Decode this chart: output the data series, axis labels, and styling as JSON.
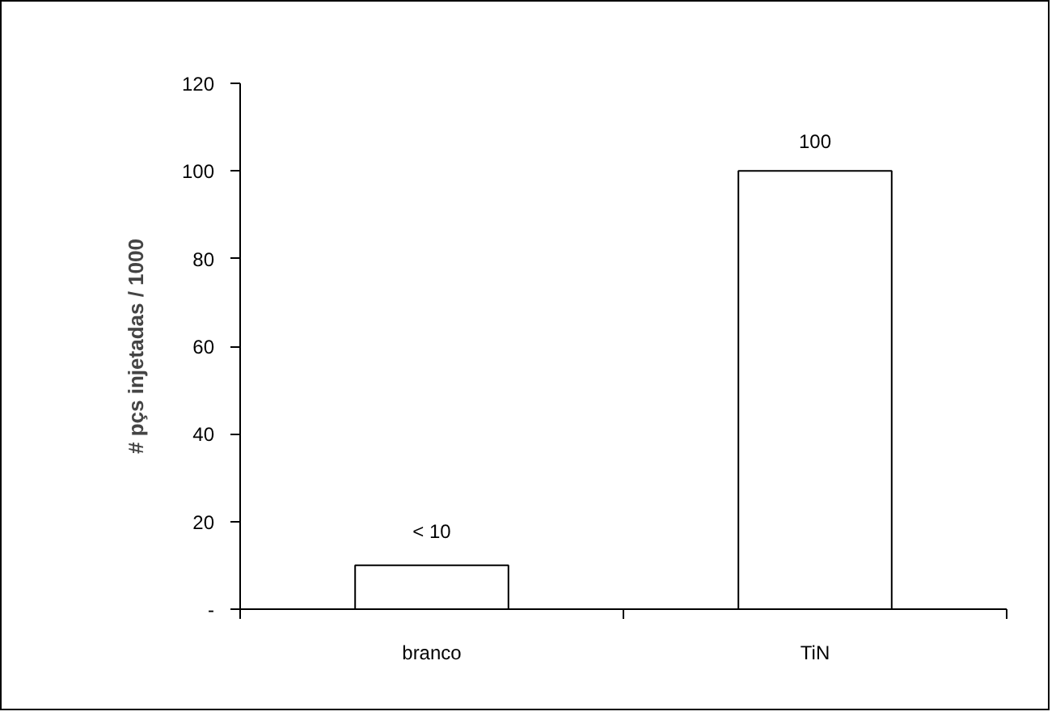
{
  "chart_data": {
    "type": "bar",
    "ylabel": "# pçs injetadas / 1000",
    "categories": [
      "branco",
      "TiN"
    ],
    "series": [
      {
        "color": "#ffffff",
        "values": [
          10,
          100
        ]
      }
    ],
    "value_labels": [
      "< 10",
      "100"
    ],
    "ylim": [
      0,
      120
    ],
    "yticks": [
      {
        "value": 0,
        "label": "-"
      },
      20,
      40,
      60,
      80,
      100,
      120
    ],
    "grid": false
  }
}
